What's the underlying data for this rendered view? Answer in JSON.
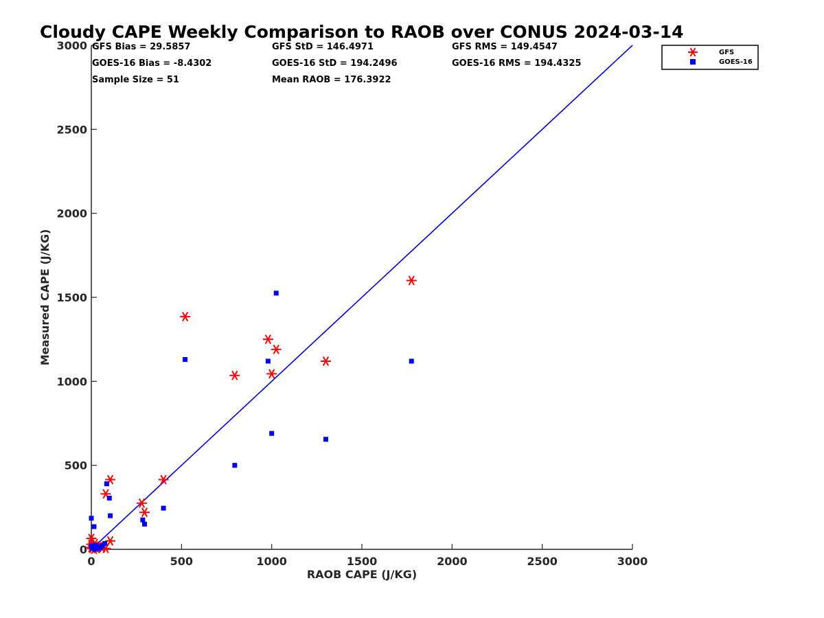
{
  "chart_data": {
    "type": "scatter",
    "title": "Cloudy CAPE Weekly Comparison to RAOB over CONUS 2024-03-14",
    "xlabel": "RAOB CAPE (J/KG)",
    "ylabel": "Measured CAPE (J/KG)",
    "xlim": [
      0,
      3000
    ],
    "ylim": [
      0,
      3000
    ],
    "xticks": [
      "0",
      "500",
      "1000",
      "1500",
      "2000",
      "2500",
      "3000"
    ],
    "yticks": [
      "0",
      "500",
      "1000",
      "1500",
      "2000",
      "2500",
      "3000"
    ],
    "grid": false,
    "legend_position": "top-right",
    "one_to_one_line": {
      "x": [
        0,
        3000
      ],
      "y": [
        0,
        3000
      ],
      "color": "#0000e6"
    },
    "stats": [
      "GFS Bias = 29.5857",
      "GFS StD = 146.4971",
      "GFS RMS = 149.4547",
      "GOES-16 Bias = -8.4302",
      "GOES-16 StD = 194.2496",
      "GOES-16 RMS = 194.4325",
      "Sample Size = 51",
      "Mean RAOB = 176.3922"
    ],
    "series": [
      {
        "name": "GFS",
        "marker": "asterisk",
        "color": "#ff0000",
        "points": [
          [
            0,
            10
          ],
          [
            0,
            30
          ],
          [
            0,
            65
          ],
          [
            5,
            5
          ],
          [
            10,
            20
          ],
          [
            15,
            0
          ],
          [
            20,
            35
          ],
          [
            25,
            10
          ],
          [
            30,
            5
          ],
          [
            40,
            15
          ],
          [
            50,
            20
          ],
          [
            60,
            8
          ],
          [
            80,
            5
          ],
          [
            80,
            330
          ],
          [
            105,
            415
          ],
          [
            105,
            50
          ],
          [
            280,
            275
          ],
          [
            295,
            220
          ],
          [
            400,
            415
          ],
          [
            520,
            1385
          ],
          [
            795,
            1035
          ],
          [
            980,
            1250
          ],
          [
            1000,
            1045
          ],
          [
            1025,
            1190
          ],
          [
            1300,
            1120
          ],
          [
            1775,
            1600
          ]
        ]
      },
      {
        "name": "GOES-16",
        "marker": "square",
        "color": "#0000ff",
        "points": [
          [
            0,
            185
          ],
          [
            0,
            20
          ],
          [
            5,
            5
          ],
          [
            10,
            10
          ],
          [
            15,
            135
          ],
          [
            20,
            0
          ],
          [
            25,
            25
          ],
          [
            30,
            15
          ],
          [
            40,
            5
          ],
          [
            50,
            10
          ],
          [
            60,
            20
          ],
          [
            75,
            35
          ],
          [
            85,
            390
          ],
          [
            100,
            305
          ],
          [
            105,
            200
          ],
          [
            285,
            175
          ],
          [
            295,
            150
          ],
          [
            400,
            245
          ],
          [
            520,
            1130
          ],
          [
            795,
            500
          ],
          [
            980,
            1120
          ],
          [
            1000,
            690
          ],
          [
            1025,
            1525
          ],
          [
            1300,
            655
          ],
          [
            1775,
            1120
          ]
        ]
      }
    ]
  }
}
